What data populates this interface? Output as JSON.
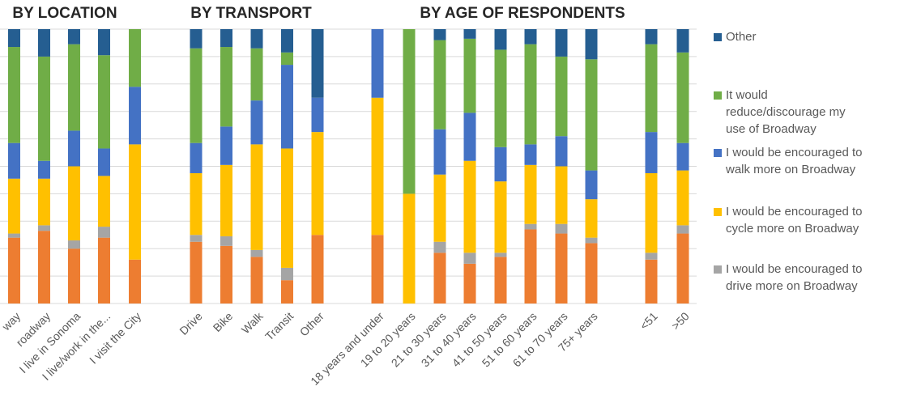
{
  "chart_data": {
    "type": "stacked_bar",
    "group_titles": [
      "BY LOCATION",
      "BY TRANSPORT",
      "BY AGE OF RESPONDENTS"
    ],
    "categories": [
      "way",
      "roadway",
      "I live in Sonoma",
      "I live/work in the...",
      "I visit the City",
      "Drive",
      "Bike",
      "Walk",
      "Transit",
      "Other",
      "18 years and under",
      "19 to 20 years",
      "21 to 30 years",
      "31 to 40 years",
      "41 to 50 years",
      "51 to 60 years",
      "61 to 70 years",
      "75+ years",
      "<51",
      ">50"
    ],
    "series": [
      {
        "color": "#ED7D31",
        "values": [
          24,
          26.5,
          20,
          24,
          16,
          22.5,
          21,
          17,
          8.5,
          25,
          25,
          0,
          18.5,
          14.5,
          17,
          27,
          25.5,
          22,
          16,
          25.5
        ]
      },
      {
        "name": "I would be encouraged to drive more on Broadway",
        "color": "#A5A5A5",
        "values": [
          1.5,
          2,
          3,
          4,
          0,
          2.5,
          3.5,
          2.5,
          4.5,
          0,
          0,
          0,
          4,
          4,
          1.5,
          2,
          3.5,
          2,
          2.5,
          3
        ]
      },
      {
        "name": "I would be encouraged to cycle more on Broadway",
        "color": "#FFC000",
        "values": [
          20,
          17,
          27,
          18.5,
          42,
          22.5,
          26,
          38.5,
          43.5,
          37.5,
          50,
          40,
          24.5,
          33.5,
          26,
          21.5,
          21,
          14,
          29,
          20
        ]
      },
      {
        "name": "I would be encouraged to walk more on Broadway",
        "color": "#4472C4",
        "values": [
          13,
          6.5,
          13,
          10,
          21,
          11,
          14,
          16,
          30.5,
          12.5,
          25,
          0,
          16.5,
          17.5,
          12.5,
          7.5,
          11,
          10.5,
          15,
          10
        ]
      },
      {
        "name": "It would reduce/discourage my use of Broadway",
        "color": "#70AD47",
        "values": [
          35,
          38,
          31.5,
          34,
          21,
          34.5,
          29,
          19,
          4.5,
          0,
          0,
          60,
          32.5,
          27,
          35.5,
          36.5,
          29,
          40.5,
          32,
          33
        ]
      },
      {
        "name": "Other",
        "color": "#255E91",
        "values": [
          6.5,
          10,
          5.5,
          9.5,
          0,
          7,
          6.5,
          7,
          8.5,
          25,
          0,
          0,
          4,
          3.5,
          7.5,
          5.5,
          10,
          11,
          5.5,
          8.5
        ]
      }
    ],
    "ylim": [
      0,
      100
    ],
    "yticks": [
      0,
      10,
      20,
      30,
      40,
      50,
      60,
      70,
      80,
      90,
      100
    ],
    "grid": true,
    "legend": "right"
  }
}
